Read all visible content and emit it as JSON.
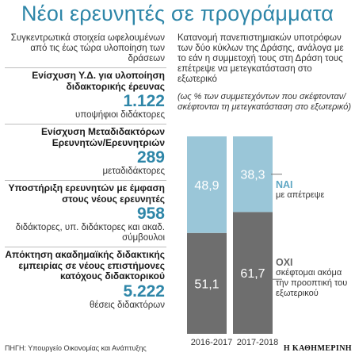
{
  "title": "Νέοι ερευνητές σε προγράμματα",
  "left": {
    "intro": "Συγκεντρωτικά στοιχεία ωφελουμένων από τις έως τώρα υλοποίηση των δράσεων",
    "blocks": [
      {
        "head": "Ενίσχυση Υ.Δ. για υλοποίηση διδακτορικής έρευνας",
        "number": "1.122",
        "unit": "υποψήφιοι διδάκτορες"
      },
      {
        "head": "Ενίσχυση Μεταδιδακτόρων Ερευνητών/Ερευνητριών",
        "number": "289",
        "unit": "μεταδιδάκτορες"
      },
      {
        "head": "Υποστήριξη ερευνητών με έμφαση στους νέους ερευνητές",
        "number": "958",
        "unit": "διδάκτορες, υπ. διδάκτορες και ακαδ. σύμβουλοι"
      },
      {
        "head": "Απόκτηση ακαδημαϊκής διδακτικής εμπειρίας σε νέους επιστήμονες κατόχους διδακτορικού",
        "number": "5.222",
        "unit": "θέσεις διδακτόρων"
      }
    ]
  },
  "right": {
    "description": "Κατανομή πανεπιστημιακών υποτρόφων των δύο κύκλων της Δράσης, ανάλογα με το εάν η συμμετοχή τους στη Δράση τους επέτρεψε να μετεγκατάσταση στο εξωτερικό",
    "note": "(ως % των συμμετεχόντων που σκέφτονταν/σκέφτονται τη μετεγκατάσταση στο εξωτερικό)"
  },
  "legend": {
    "yes_title": "ΝΑΙ",
    "yes_sub": "με απέτρεψε",
    "no_title": "ΟΧΙ",
    "no_sub": "σκέφτομαι ακόμα την προοπτική του εξωτερικού"
  },
  "chart_data": {
    "type": "bar",
    "stacked": true,
    "categories": [
      "2016-2017",
      "2017-2018"
    ],
    "series": [
      {
        "name": "ΟΧΙ",
        "values": [
          51.1,
          61.7
        ],
        "labels": [
          "51,1",
          "61,7"
        ],
        "color": "#6e6e6e"
      },
      {
        "name": "ΝΑΙ",
        "values": [
          48.9,
          38.3
        ],
        "labels": [
          "48,9",
          "38,3"
        ],
        "color": "#9ac6d8"
      }
    ],
    "ylim": [
      0,
      100
    ]
  },
  "source": "ΠΗΓΗ: Υπουργείο Οικονομίας και Ανάπτυξης",
  "logo": "Η ΚΑΘΗΜΕΡΙΝΗ"
}
